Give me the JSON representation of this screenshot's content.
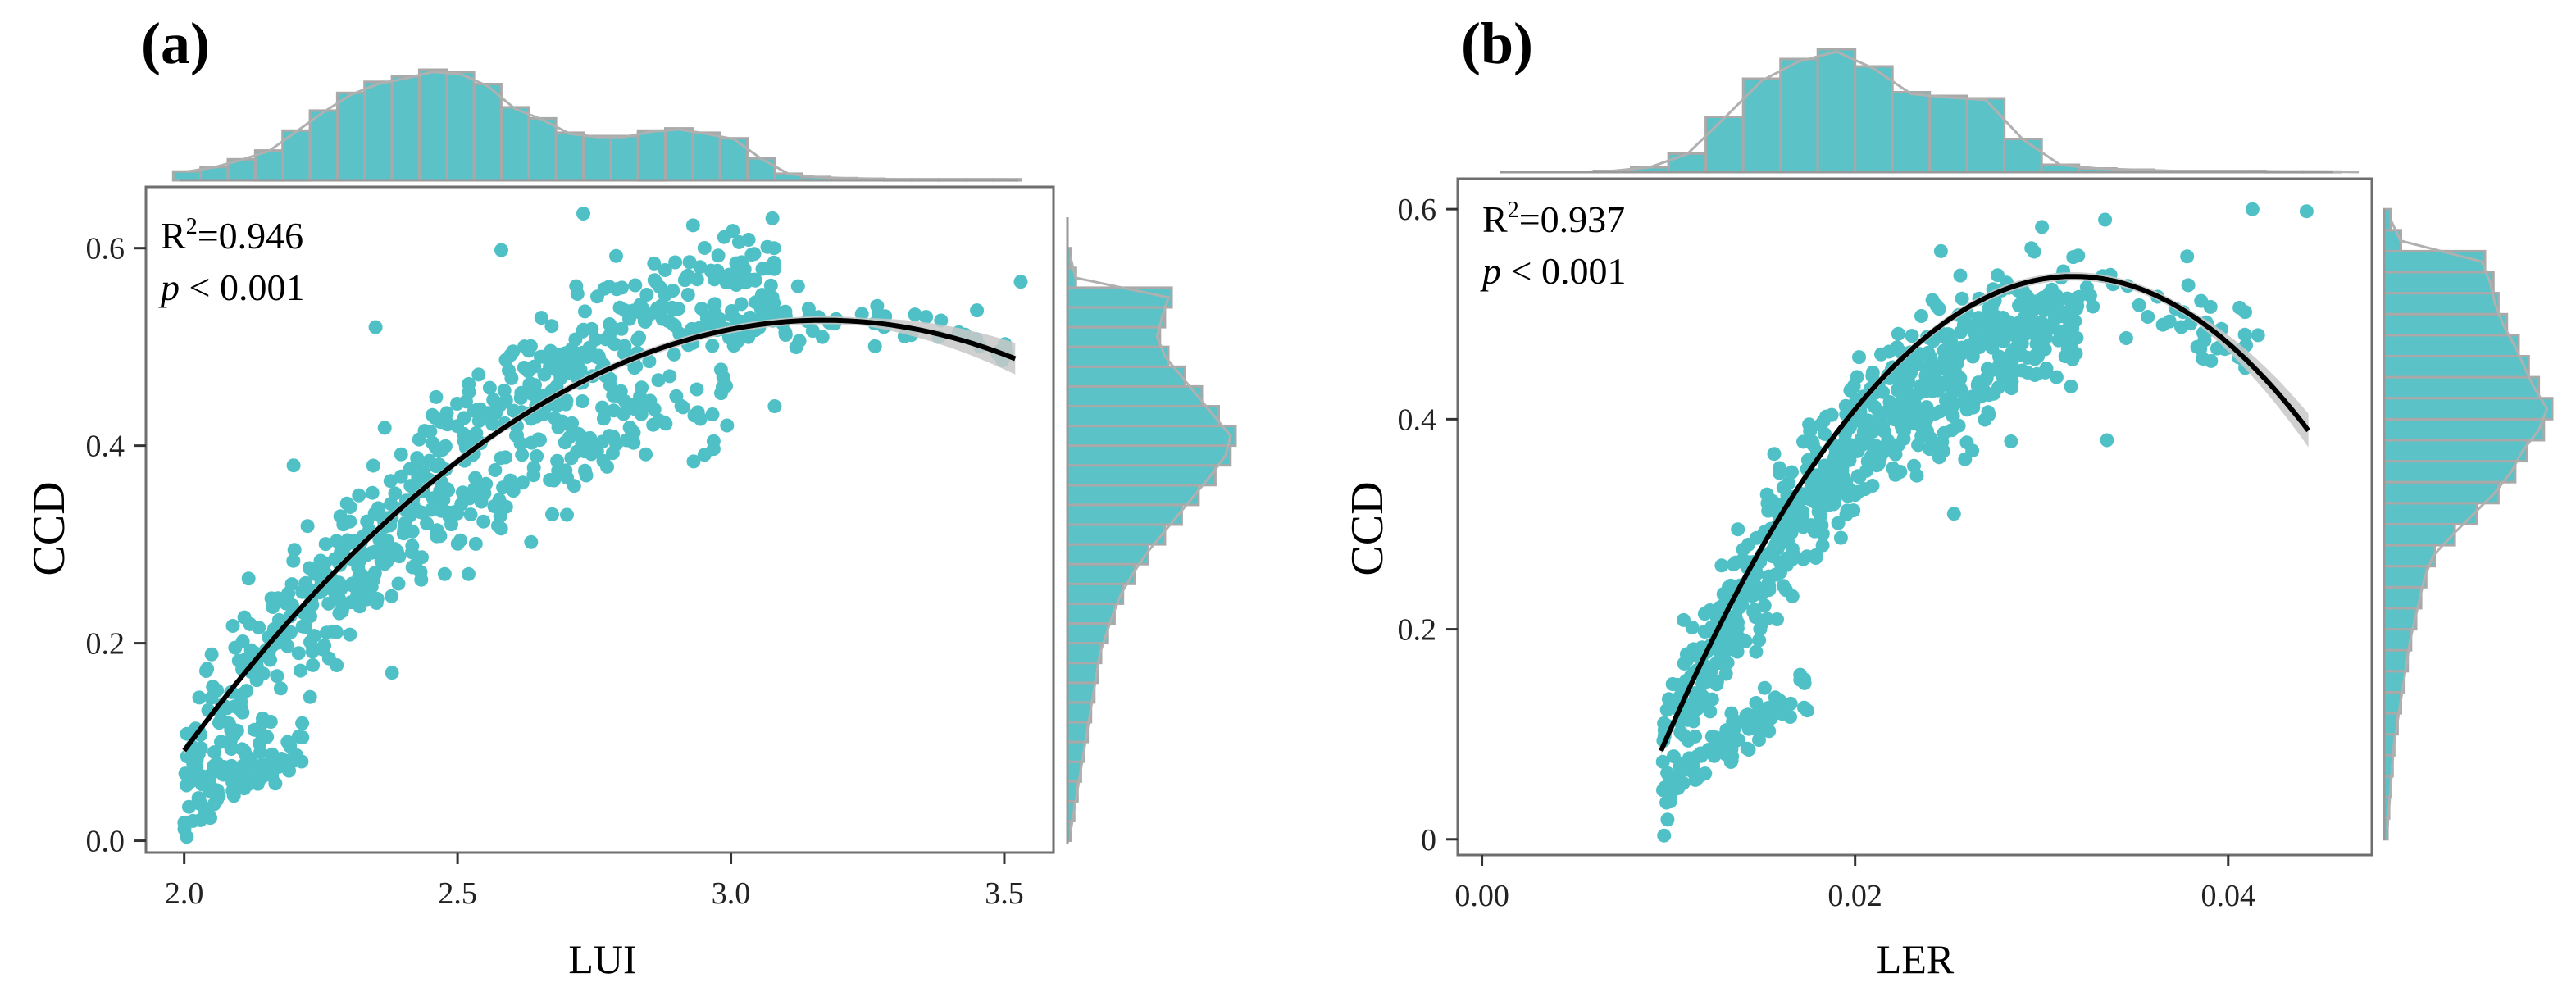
{
  "colors": {
    "point": "#4fc1c6",
    "bar_fill": "#5bc3c8",
    "bar_stroke": "#a9a9a9",
    "curve": "#000000",
    "ribbon": "#c8c8c8",
    "frame": "#6e6e6e",
    "density": "#b0b0b0"
  },
  "chart_data": [
    {
      "type": "scatter",
      "panel_label": "(a)",
      "xlabel": "LUI",
      "ylabel": "CCD",
      "xlim": [
        1.93,
        3.59
      ],
      "ylim": [
        -0.012,
        0.662
      ],
      "x_ticks": [
        2.0,
        2.5,
        3.0,
        3.5
      ],
      "x_tick_labels": [
        "2.0",
        "2.5",
        "3.0",
        "3.5"
      ],
      "y_ticks": [
        0.0,
        0.2,
        0.4,
        0.6
      ],
      "y_tick_labels": [
        "0.0",
        "0.2",
        "0.4",
        "0.6"
      ],
      "annotation": {
        "r2_label": "R",
        "r2_sup": "2",
        "r2_value": "=0.946",
        "p_italic": "p",
        "p_rest": " < 0.001"
      },
      "fit": {
        "type": "quadratic",
        "x_range": [
          2.0,
          3.52
        ],
        "vertex": [
          3.17,
          0.527
        ],
        "a": -0.3183
      },
      "bands": [
        {
          "x_range": [
            2.0,
            3.08
          ],
          "curve_offset": [
            -0.015,
            0.05
          ],
          "spread": 0.03,
          "n": 520
        },
        {
          "x_range": [
            2.22,
            3.0
          ],
          "curve_offset": [
            -0.045,
            -0.075
          ],
          "spread": 0.025,
          "n": 180
        },
        {
          "x_range": [
            2.95,
            3.52
          ],
          "curve_offset": [
            0.0,
            0.0
          ],
          "spread": 0.012,
          "n": 60
        }
      ],
      "lower_branch": {
        "x_range": [
          2.0,
          2.22
        ],
        "y_range": [
          0.005,
          0.095
        ],
        "n": 75
      },
      "outliers": [
        [
          2.73,
          0.635
        ],
        [
          2.58,
          0.598
        ],
        [
          2.35,
          0.52
        ],
        [
          2.79,
          0.592
        ],
        [
          3.08,
          0.44
        ],
        [
          3.53,
          0.566
        ],
        [
          3.45,
          0.537
        ],
        [
          3.38,
          0.51
        ],
        [
          2.2,
          0.38
        ],
        [
          2.38,
          0.17
        ],
        [
          2.52,
          0.27
        ],
        [
          2.7,
          0.33
        ],
        [
          2.9,
          0.45
        ],
        [
          2.27,
          0.265
        ],
        [
          2.12,
          0.185
        ]
      ],
      "top_hist": {
        "bins": [
          1.98,
          2.03,
          2.08,
          2.13,
          2.18,
          2.23,
          2.28,
          2.33,
          2.38,
          2.43,
          2.48,
          2.53,
          2.58,
          2.63,
          2.68,
          2.73,
          2.78,
          2.83,
          2.88,
          2.93,
          2.98,
          3.03,
          3.08,
          3.13,
          3.18,
          3.23,
          3.28,
          3.33,
          3.38,
          3.43,
          3.48,
          3.53
        ],
        "counts": [
          0.08,
          0.12,
          0.19,
          0.27,
          0.45,
          0.63,
          0.79,
          0.89,
          0.94,
          1.0,
          0.98,
          0.87,
          0.66,
          0.56,
          0.43,
          0.4,
          0.4,
          0.45,
          0.47,
          0.43,
          0.38,
          0.2,
          0.06,
          0.03,
          0.02,
          0.015,
          0.01,
          0.01,
          0.01,
          0.01,
          0.01
        ]
      },
      "right_hist": {
        "bins": [
          0.0,
          0.02,
          0.04,
          0.06,
          0.08,
          0.1,
          0.12,
          0.14,
          0.16,
          0.18,
          0.2,
          0.22,
          0.24,
          0.26,
          0.28,
          0.3,
          0.32,
          0.34,
          0.36,
          0.38,
          0.4,
          0.42,
          0.44,
          0.46,
          0.48,
          0.5,
          0.52,
          0.54,
          0.56,
          0.58,
          0.6
        ],
        "counts": [
          0.02,
          0.04,
          0.06,
          0.08,
          0.1,
          0.12,
          0.14,
          0.16,
          0.18,
          0.2,
          0.24,
          0.28,
          0.33,
          0.4,
          0.48,
          0.58,
          0.68,
          0.78,
          0.88,
          0.97,
          1.0,
          0.9,
          0.8,
          0.7,
          0.6,
          0.55,
          0.58,
          0.62,
          0.05,
          0.02
        ]
      }
    },
    {
      "type": "scatter",
      "panel_label": "(b)",
      "xlabel": "LER",
      "ylabel": "CCD",
      "xlim": [
        -0.0013,
        0.0477
      ],
      "ylim": [
        -0.015,
        0.629
      ],
      "x_ticks": [
        0.0,
        0.02,
        0.04
      ],
      "x_tick_labels": [
        "0.00",
        "0.02",
        "0.04"
      ],
      "y_ticks": [
        0.0,
        0.2,
        0.4,
        0.6
      ],
      "y_tick_labels": [
        "0",
        "0.2",
        "0.4",
        "0.6"
      ],
      "annotation": {
        "r2_label": "R",
        "r2_sup": "2",
        "r2_value": "=0.937",
        "p_italic": "p",
        "p_rest": " < 0.001"
      },
      "fit": {
        "type": "quadratic",
        "x_range": [
          0.0096,
          0.0443
        ],
        "vertex": [
          0.0317,
          0.536
        ],
        "a": -925
      },
      "bands": [
        {
          "x_range": [
            0.0096,
            0.032
          ],
          "curve_offset": [
            0.0,
            -0.05
          ],
          "spread": 0.028,
          "n": 560
        },
        {
          "x_range": [
            0.0125,
            0.0285
          ],
          "curve_offset": [
            -0.03,
            -0.11
          ],
          "spread": 0.022,
          "n": 150
        },
        {
          "x_range": [
            0.03,
            0.041
          ],
          "curve_offset": [
            -0.02,
            0.0
          ],
          "spread": 0.018,
          "n": 55
        }
      ],
      "lower_branch": {
        "x_range": [
          0.0096,
          0.0175
        ],
        "y_range": [
          0.003,
          0.14
        ],
        "n": 90
      },
      "outliers": [
        [
          0.0413,
          0.6
        ],
        [
          0.0442,
          0.598
        ],
        [
          0.0334,
          0.59
        ],
        [
          0.0378,
          0.555
        ],
        [
          0.0416,
          0.48
        ],
        [
          0.0335,
          0.38
        ],
        [
          0.0298,
          0.46
        ],
        [
          0.0253,
          0.31
        ],
        [
          0.0308,
          0.44
        ],
        [
          0.0246,
          0.56
        ],
        [
          0.0365,
          0.49
        ]
      ],
      "top_hist": {
        "bins": [
          0.0,
          0.002,
          0.004,
          0.006,
          0.008,
          0.01,
          0.012,
          0.014,
          0.016,
          0.018,
          0.02,
          0.022,
          0.024,
          0.026,
          0.028,
          0.03,
          0.032,
          0.034,
          0.036,
          0.038,
          0.04,
          0.042,
          0.044,
          0.046,
          0.048
        ],
        "counts": [
          0.0,
          0.0,
          0.0,
          0.01,
          0.04,
          0.15,
          0.45,
          0.76,
          0.92,
          1.0,
          0.86,
          0.65,
          0.62,
          0.6,
          0.27,
          0.06,
          0.03,
          0.02,
          0.01,
          0.01,
          0.01,
          0.005,
          0.005,
          0.0
        ]
      },
      "right_hist": {
        "bins": [
          0.0,
          0.02,
          0.04,
          0.06,
          0.08,
          0.1,
          0.12,
          0.14,
          0.16,
          0.18,
          0.2,
          0.22,
          0.24,
          0.26,
          0.28,
          0.3,
          0.32,
          0.34,
          0.36,
          0.38,
          0.4,
          0.42,
          0.44,
          0.46,
          0.48,
          0.5,
          0.52,
          0.54,
          0.56,
          0.58,
          0.6
        ],
        "counts": [
          0.02,
          0.03,
          0.04,
          0.05,
          0.06,
          0.08,
          0.1,
          0.12,
          0.14,
          0.16,
          0.19,
          0.22,
          0.25,
          0.3,
          0.42,
          0.55,
          0.68,
          0.78,
          0.85,
          0.95,
          1.0,
          0.92,
          0.86,
          0.8,
          0.73,
          0.68,
          0.65,
          0.6,
          0.1,
          0.04
        ]
      }
    }
  ]
}
